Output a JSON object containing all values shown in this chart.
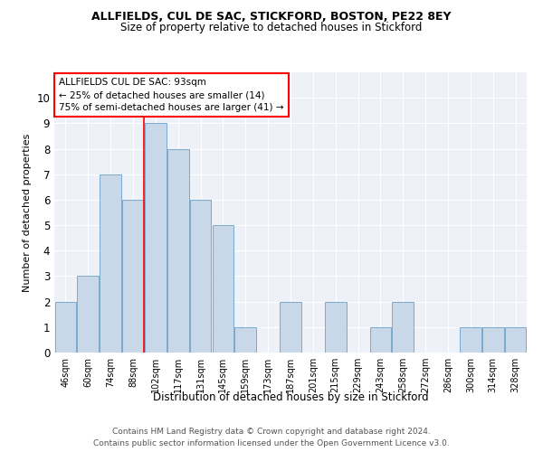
{
  "title1": "ALLFIELDS, CUL DE SAC, STICKFORD, BOSTON, PE22 8EY",
  "title2": "Size of property relative to detached houses in Stickford",
  "xlabel": "Distribution of detached houses by size in Stickford",
  "ylabel": "Number of detached properties",
  "categories": [
    "46sqm",
    "60sqm",
    "74sqm",
    "88sqm",
    "102sqm",
    "117sqm",
    "131sqm",
    "145sqm",
    "159sqm",
    "173sqm",
    "187sqm",
    "201sqm",
    "215sqm",
    "229sqm",
    "243sqm",
    "258sqm",
    "272sqm",
    "286sqm",
    "300sqm",
    "314sqm",
    "328sqm"
  ],
  "values": [
    2,
    3,
    7,
    6,
    9,
    8,
    6,
    5,
    1,
    0,
    2,
    0,
    2,
    0,
    1,
    2,
    0,
    0,
    1,
    1,
    1
  ],
  "bar_color": "#c8d8e8",
  "bar_edge_color": "#7aaace",
  "vline_x": 3.5,
  "annotation_title": "ALLFIELDS CUL DE SAC: 93sqm",
  "annotation_line1": "← 25% of detached houses are smaller (14)",
  "annotation_line2": "75% of semi-detached houses are larger (41) →",
  "ylim": [
    0,
    11
  ],
  "yticks": [
    0,
    1,
    2,
    3,
    4,
    5,
    6,
    7,
    8,
    9,
    10
  ],
  "footer1": "Contains HM Land Registry data © Crown copyright and database right 2024.",
  "footer2": "Contains public sector information licensed under the Open Government Licence v3.0.",
  "background_color": "#eef2f8"
}
